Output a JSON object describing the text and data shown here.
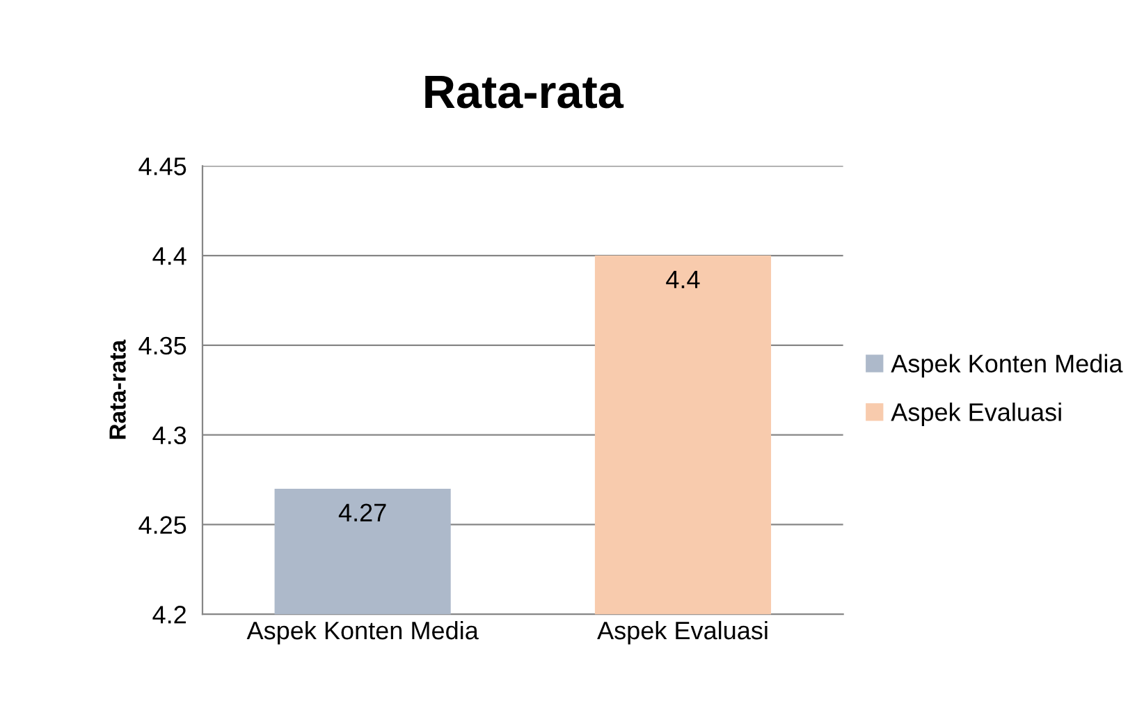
{
  "chart_data": {
    "type": "bar",
    "title": "Rata-rata",
    "ylabel": "Rata-rata",
    "categories": [
      "Aspek Konten Media",
      "Aspek Evaluasi"
    ],
    "series": [
      {
        "name": "Aspek Konten Media",
        "color": "#adb9ca",
        "values": [
          4.27,
          null
        ]
      },
      {
        "name": "Aspek Evaluasi",
        "color": "#f8cbad",
        "values": [
          null,
          4.4
        ]
      }
    ],
    "ylim": [
      4.2,
      4.45
    ],
    "yticks": [
      4.2,
      4.25,
      4.3,
      4.35,
      4.4,
      4.45
    ],
    "grid": "y",
    "legend": "right",
    "data_labels": true
  }
}
